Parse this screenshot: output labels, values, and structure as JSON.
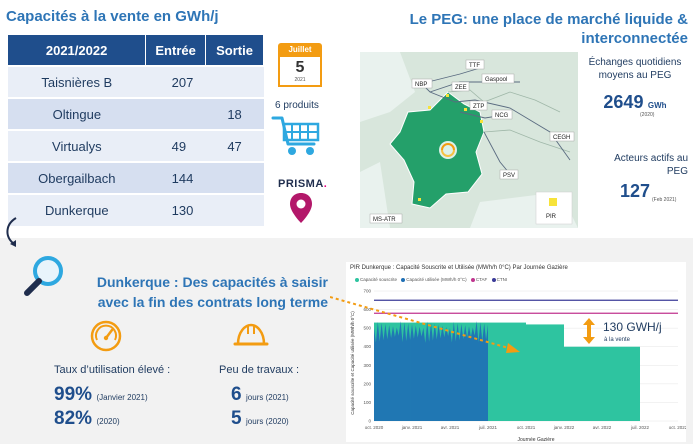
{
  "left": {
    "title": "Capacités à la vente en GWh/j",
    "table": {
      "headers": [
        "2021/2022",
        "Entrée",
        "Sortie"
      ],
      "rows": [
        {
          "name": "Taisnières B",
          "entree": "207",
          "sortie": ""
        },
        {
          "name": "Oltingue",
          "entree": "",
          "sortie": "18"
        },
        {
          "name": "Virtualys",
          "entree": "49",
          "sortie": "47"
        },
        {
          "name": "Obergailbach",
          "entree": "144",
          "sortie": ""
        },
        {
          "name": "Dunkerque",
          "entree": "130",
          "sortie": ""
        }
      ]
    },
    "calendar": {
      "month": "Juillet",
      "day": "5",
      "year": "2021"
    },
    "products_label": "6 produits",
    "prisma_text": "PRISMA",
    "prisma_dot": "."
  },
  "right": {
    "title": "Le PEG: une place de marché liquide & interconnectée",
    "map_labels": [
      "TTF",
      "NBP",
      "ZEE",
      "Gaspool",
      "ZTP",
      "NCG",
      "CEGH",
      "PSV",
      "MS-ATR",
      "PIR"
    ],
    "exchanges_label": "Échanges quotidiens moyens au PEG",
    "exchanges_value": "2649",
    "exchanges_unit": "GWh",
    "exchanges_year": "(2020)",
    "actors_label": "Acteurs actifs au PEG",
    "actors_value": "127",
    "actors_date": "(Feb 2021)"
  },
  "bottom": {
    "title_line1": "Dunkerque : Des capacités à saisir",
    "title_line2": "avec la fin des contrats long terme",
    "taux_label": "Taux d’utilisation élevé :",
    "taux_1_value": "99%",
    "taux_1_note": "(Janvier 2021)",
    "taux_2_value": "82%",
    "taux_2_note": "(2020)",
    "travaux_label": "Peu de travaux :",
    "travaux_1_value": "6",
    "travaux_1_note": "jours (2021)",
    "travaux_2_value": "5",
    "travaux_2_note": "jours (2020)",
    "capacity_value": "130 GWH/j",
    "capacity_sub": "à la vente"
  },
  "chart_data": {
    "type": "area",
    "title": "PIR Dunkerque : Capacité Souscrite et Utilisée (MWh/h 0°C) Par Journée Gazière",
    "xlabel": "Journée Gazière",
    "ylabel": "Capacité souscrite et Capacité utilisée (MWh/h 0°C)",
    "legend": [
      "Capacité souscrite",
      "Capacité utilisée (MWh/h 0°C)",
      "CTAF",
      "CTNI"
    ],
    "legend_colors": [
      "#2ec4a0",
      "#1f6fb5",
      "#c0358f",
      "#3b3b98"
    ],
    "x_ticks": [
      "oct. 2020",
      "janv. 2021",
      "avr. 2021",
      "juil. 2021",
      "oct. 2021",
      "janv. 2022",
      "avr. 2022",
      "juil. 2022",
      "oct. 2022"
    ],
    "y_ticks": [
      "0",
      "100",
      "200",
      "300",
      "400",
      "500",
      "600",
      "700"
    ],
    "ylim": [
      0,
      700
    ],
    "ctni": 650,
    "ctaf": 580,
    "subscribed_steps": [
      {
        "x_start": 0.0,
        "x_end": 0.12,
        "value": 530
      },
      {
        "x_start": 0.12,
        "x_end": 0.5,
        "value": 530
      },
      {
        "x_start": 0.5,
        "x_end": 0.625,
        "value": 520
      },
      {
        "x_start": 0.625,
        "x_end": 0.875,
        "value": 400
      },
      {
        "x_start": 0.875,
        "x_end": 1.0,
        "value": 0
      }
    ],
    "used_until": 0.375,
    "used_level": 480
  }
}
